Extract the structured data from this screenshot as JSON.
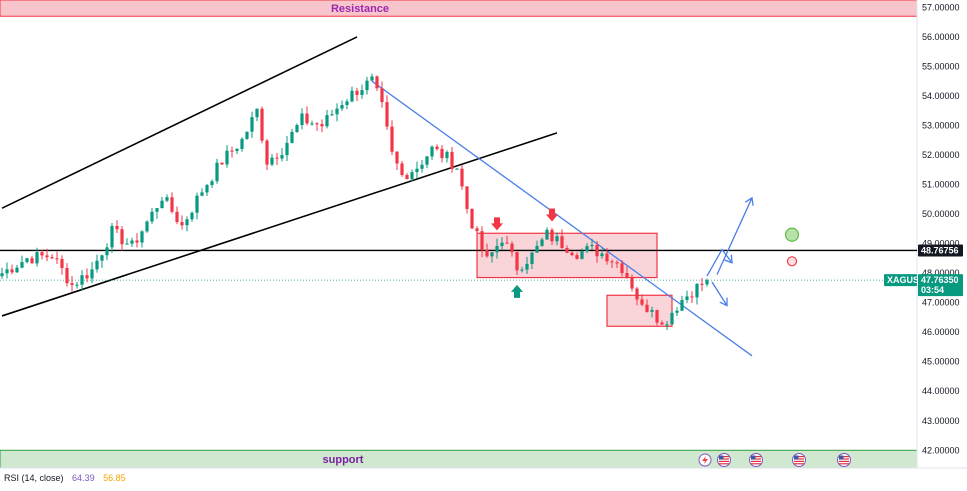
{
  "chart_data": {
    "type": "candlestick",
    "symbol": "XAGUSD",
    "y_ticks": [
      "57.00000",
      "56.00000",
      "55.00000",
      "54.00000",
      "53.00000",
      "52.00000",
      "51.00000",
      "50.00000",
      "49.00000",
      "48.00000",
      "47.00000",
      "46.00000",
      "45.00000",
      "44.00000",
      "43.00000",
      "42.00000"
    ],
    "ylim": [
      41.4,
      57.25
    ],
    "current_price": "47.76350",
    "countdown": "03:54",
    "level_price": "48.76756",
    "zones": {
      "resistance": {
        "label": "Resistance",
        "range": [
          56.7,
          57.25
        ]
      },
      "support": {
        "label": "support",
        "range": [
          41.4,
          42.0
        ]
      }
    },
    "horizontal_line": 48.76756,
    "boxes": [
      {
        "x": [
          95,
          131
        ],
        "y": [
          47.85,
          49.35
        ]
      },
      {
        "x": [
          121,
          134
        ],
        "y": [
          46.2,
          47.25
        ]
      }
    ],
    "trendlines": [
      {
        "from": [
          0,
          50.2
        ],
        "to": [
          71,
          56.0
        ],
        "color": "#000000"
      },
      {
        "from": [
          0,
          46.55
        ],
        "to": [
          111,
          52.75
        ],
        "color": "#000000"
      },
      {
        "from": [
          74,
          54.5
        ],
        "to": [
          150,
          45.2
        ],
        "color": "#4a7ee8"
      }
    ],
    "price_path": [
      [
        0,
        48.0
      ],
      [
        5,
        48.5
      ],
      [
        10,
        48.6
      ],
      [
        14,
        47.6
      ],
      [
        18,
        48.1
      ],
      [
        22,
        49.4
      ],
      [
        26,
        48.9
      ],
      [
        30,
        50.0
      ],
      [
        32,
        50.6
      ],
      [
        36,
        49.6
      ],
      [
        40,
        50.8
      ],
      [
        44,
        51.8
      ],
      [
        48,
        52.5
      ],
      [
        51,
        53.5
      ],
      [
        53,
        51.8
      ],
      [
        56,
        52.2
      ],
      [
        60,
        53.2
      ],
      [
        64,
        53.0
      ],
      [
        68,
        53.8
      ],
      [
        71,
        54.2
      ],
      [
        74,
        54.5
      ],
      [
        76,
        53.6
      ],
      [
        78,
        52.0
      ],
      [
        80,
        51.3
      ],
      [
        83,
        51.6
      ],
      [
        86,
        52.2
      ],
      [
        89,
        51.9
      ],
      [
        91,
        51.6
      ],
      [
        93,
        50.2
      ],
      [
        95,
        49.2
      ],
      [
        97,
        48.4
      ],
      [
        100,
        49.2
      ],
      [
        103,
        48.2
      ],
      [
        106,
        48.6
      ],
      [
        109,
        49.3
      ],
      [
        112,
        49.0
      ],
      [
        115,
        48.7
      ],
      [
        118,
        48.8
      ],
      [
        121,
        48.6
      ],
      [
        124,
        48.2
      ],
      [
        126,
        47.6
      ],
      [
        128,
        46.8
      ],
      [
        130,
        46.9
      ],
      [
        132,
        46.2
      ],
      [
        134,
        46.7
      ],
      [
        136,
        47.1
      ],
      [
        138,
        47.4
      ],
      [
        141,
        47.76
      ]
    ],
    "arrows_down": [
      [
        99,
        49.55
      ],
      [
        110,
        49.85
      ]
    ],
    "arrows_up": [
      [
        103,
        47.5
      ]
    ],
    "projection": [
      {
        "points": [
          [
            141,
            47.9
          ],
          [
            144,
            48.8
          ],
          [
            146,
            48.35
          ]
        ]
      },
      {
        "points": [
          [
            142,
            47.7
          ],
          [
            145,
            46.9
          ]
        ]
      },
      {
        "points": [
          [
            143,
            47.95
          ],
          [
            150,
            50.55
          ]
        ]
      }
    ],
    "signals": [
      {
        "x": 158,
        "y": 49.3,
        "color": "#62b949"
      },
      {
        "x": 158,
        "y": 48.4,
        "color": "#f23645"
      }
    ]
  },
  "indicator": {
    "name": "RSI (14, close)",
    "value1": "64.39",
    "value2": "56.85"
  },
  "colors": {
    "up": "#089981",
    "down": "#f23645",
    "zone_red": "#f7c5cb",
    "zone_green": "#cfe8cf",
    "trend_blue": "#4a7ee8"
  }
}
